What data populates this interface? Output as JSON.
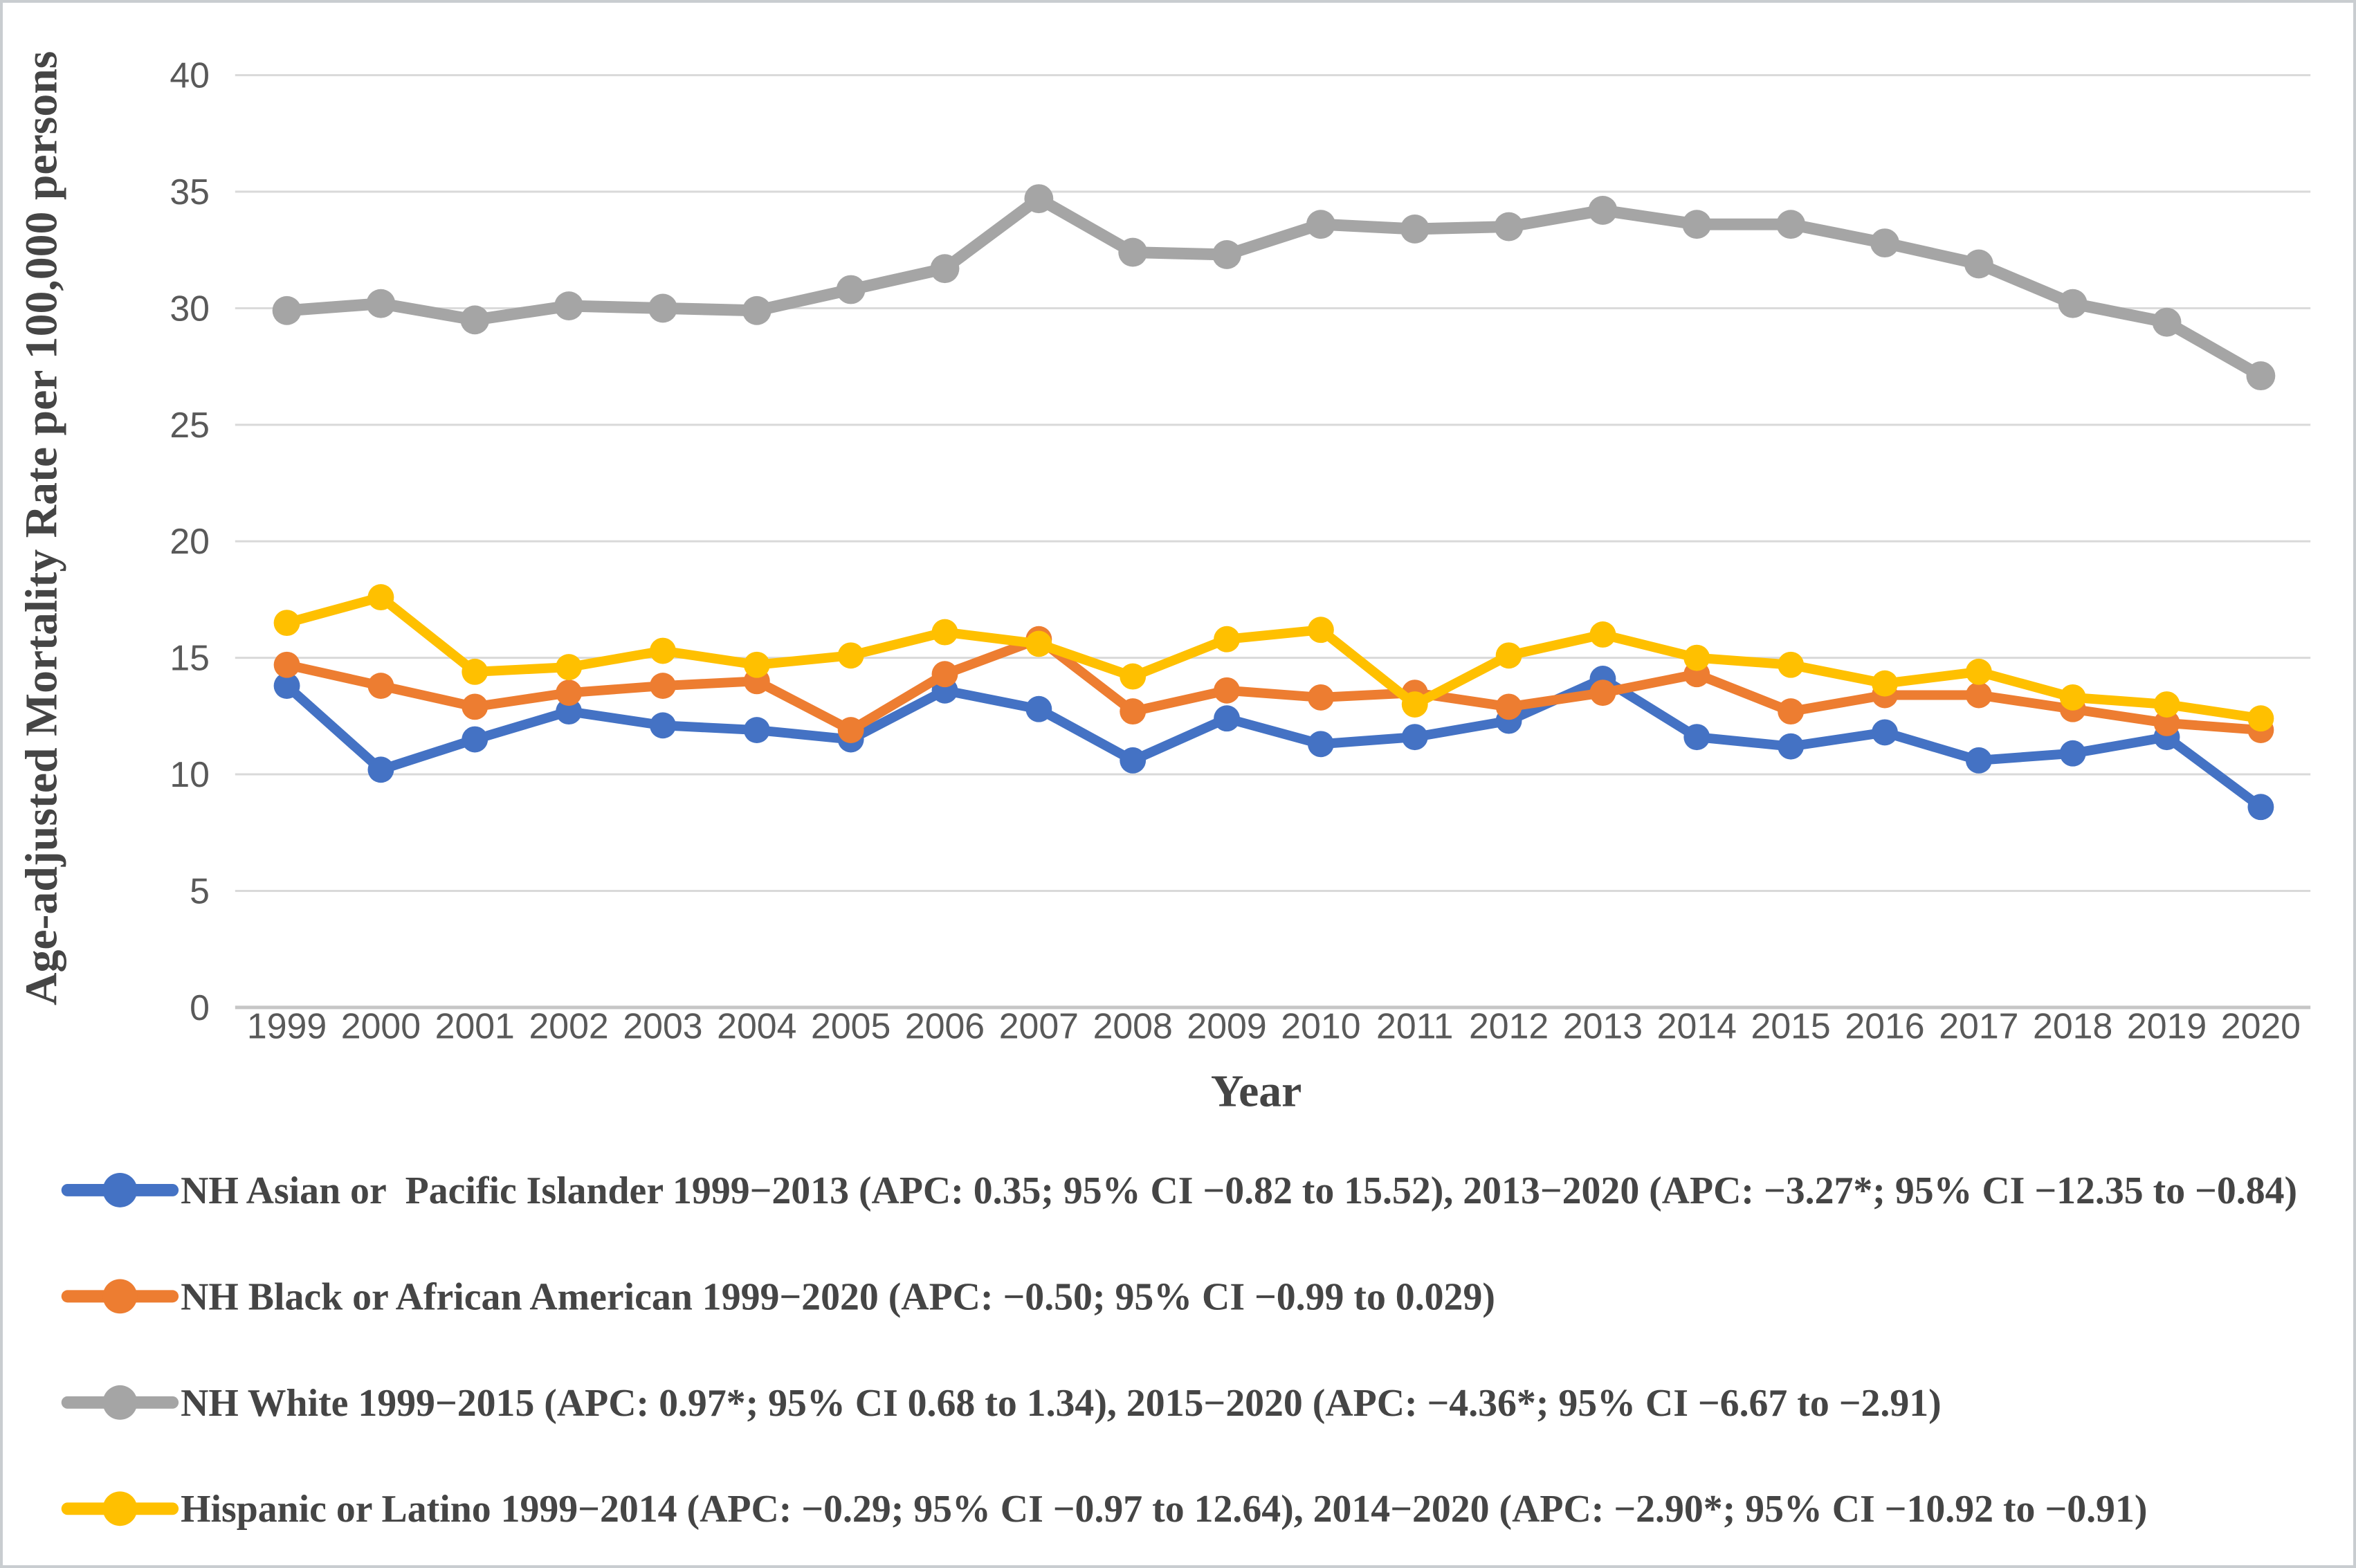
{
  "figure": {
    "type_label": "line-chart-figure"
  },
  "chart_data": {
    "type": "line",
    "title": "",
    "xlabel": "Year",
    "ylabel": "Age-adjusted Mortality Rate per 100,000 persons",
    "ylim": [
      0,
      40
    ],
    "yticks": [
      0,
      5,
      10,
      15,
      20,
      25,
      30,
      35,
      40
    ],
    "grid": true,
    "legend_position": "bottom",
    "marker": "circle",
    "x": [
      1999,
      2000,
      2001,
      2002,
      2003,
      2004,
      2005,
      2006,
      2007,
      2008,
      2009,
      2010,
      2011,
      2012,
      2013,
      2014,
      2015,
      2016,
      2017,
      2018,
      2019,
      2020
    ],
    "series": [
      {
        "name": "NH Asian or Pacific Islander",
        "color": "#4472C4",
        "legend_label": "NH Asian or  Pacific Islander 1999−2013 (APC: 0.35; 95% CI −0.82 to 15.52), 2013−2020 (APC: −3.27*; 95% CI −12.35 to −0.84)",
        "values": [
          13.8,
          10.2,
          11.5,
          12.7,
          12.1,
          11.9,
          11.5,
          13.6,
          12.8,
          10.6,
          12.4,
          11.3,
          11.6,
          12.3,
          14.1,
          11.6,
          11.2,
          11.8,
          10.6,
          10.9,
          11.6,
          8.6
        ]
      },
      {
        "name": "NH Black or African American",
        "color": "#ED7D31",
        "legend_label": "NH Black or African American 1999−2020 (APC: −0.50; 95% CI −0.99 to 0.029)",
        "values": [
          14.7,
          13.8,
          12.9,
          13.5,
          13.8,
          14.0,
          11.9,
          14.3,
          15.8,
          12.7,
          13.6,
          13.3,
          13.5,
          12.9,
          13.5,
          14.3,
          12.7,
          13.4,
          13.4,
          12.8,
          12.2,
          11.9
        ]
      },
      {
        "name": "NH White",
        "color": "#A5A5A5",
        "legend_label": "NH White 1999−2015 (APC: 0.97*; 95% CI 0.68 to 1.34), 2015−2020 (APC: −4.36*; 95% CI −6.67 to −2.91)",
        "values": [
          29.9,
          30.2,
          29.5,
          30.1,
          30.0,
          29.9,
          30.8,
          31.7,
          34.7,
          32.4,
          32.3,
          33.6,
          33.4,
          33.5,
          34.2,
          33.6,
          33.6,
          32.8,
          31.9,
          30.2,
          29.4,
          27.1
        ]
      },
      {
        "name": "Hispanic or Latino",
        "color": "#FFC000",
        "legend_label": "Hispanic or Latino 1999−2014 (APC: −0.29; 95% CI −0.97 to 12.64), 2014−2020 (APC: −2.90*; 95% CI −10.92 to −0.91)",
        "values": [
          16.5,
          17.6,
          14.4,
          14.6,
          15.3,
          14.7,
          15.1,
          16.1,
          15.6,
          14.2,
          15.8,
          16.2,
          13.0,
          15.1,
          16.0,
          15.0,
          14.7,
          13.9,
          14.4,
          13.3,
          13.0,
          12.4
        ]
      }
    ]
  }
}
